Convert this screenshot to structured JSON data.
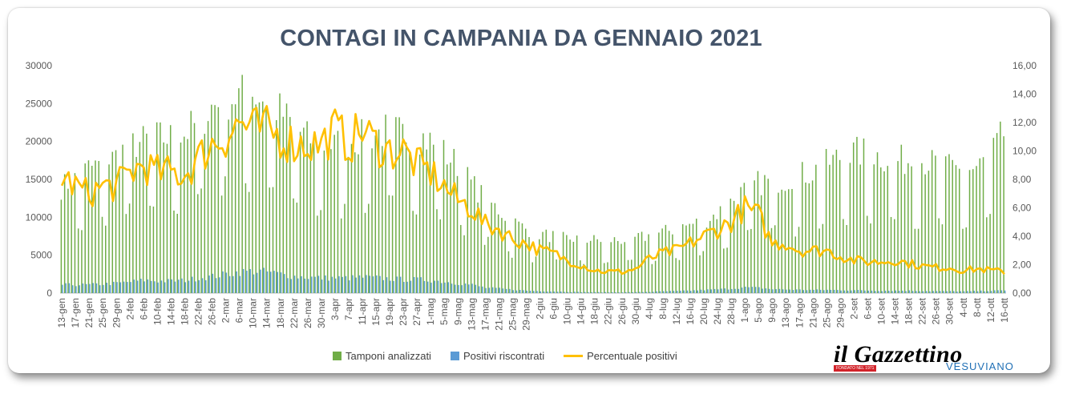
{
  "chart_data": {
    "type": "bar",
    "title": "CONTAGI IN CAMPANIA DA GENNAIO 2021",
    "x_tick_labels": [
      "13-gen",
      "17-gen",
      "21-gen",
      "25-gen",
      "29-gen",
      "2-feb",
      "6-feb",
      "10-feb",
      "14-feb",
      "18-feb",
      "22-feb",
      "26-feb",
      "2-mar",
      "6-mar",
      "10-mar",
      "14-mar",
      "18-mar",
      "22-mar",
      "26-mar",
      "30-mar",
      "3-apr",
      "7-apr",
      "11-apr",
      "15-apr",
      "19-apr",
      "23-apr",
      "27-apr",
      "1-mag",
      "5-mag",
      "9-mag",
      "13-mag",
      "17-mag",
      "21-mag",
      "25-mag",
      "29-mag",
      "2-giu",
      "6-giu",
      "10-giu",
      "14-giu",
      "18-giu",
      "22-giu",
      "26-giu",
      "30-giu",
      "4-lug",
      "8-lug",
      "12-lug",
      "16-lug",
      "20-lug",
      "24-lug",
      "28-lug",
      "1-ago",
      "5-ago",
      "9-ago",
      "13-ago",
      "17-ago",
      "21-ago",
      "25-ago",
      "29-ago",
      "2-set",
      "6-set",
      "10-set",
      "14-set",
      "18-set",
      "22-set",
      "26-set",
      "30-set",
      "4-ott",
      "8-ott",
      "12-ott",
      "16-ott"
    ],
    "y_left": {
      "range": [
        0,
        30000
      ],
      "ticks": [
        "0",
        "5000",
        "10000",
        "15000",
        "20000",
        "25000",
        "30000"
      ]
    },
    "y_right": {
      "range": [
        0,
        16
      ],
      "ticks": [
        "0,00",
        "2,00",
        "4,00",
        "6,00",
        "8,00",
        "10,00",
        "12,00",
        "14,00",
        "16,00"
      ]
    },
    "grid": false,
    "legend_position": "bottom",
    "series": [
      {
        "name": "Tamponi analizzati",
        "kind": "bar",
        "color": "#70ad47",
        "anchors": [
          14000,
          15000,
          16500,
          17000,
          18000,
          19500,
          20000,
          20500,
          20500,
          21000,
          22500,
          24500,
          25500,
          26000,
          26500,
          25500,
          24000,
          22000,
          20500,
          19500,
          19500,
          20000,
          20500,
          21000,
          21500,
          21000,
          21000,
          20000,
          18500,
          17000,
          14500,
          12500,
          11000,
          9500,
          8500,
          7800,
          7500,
          7200,
          7200,
          7000,
          7000,
          7000,
          7200,
          7500,
          8000,
          8500,
          9000,
          9500,
          10500,
          12000,
          13500,
          14500,
          14800,
          15000,
          15500,
          16000,
          17000,
          18000,
          18500,
          18500,
          18000,
          17500,
          17500,
          17500,
          17000,
          16500,
          16000,
          16500,
          18000,
          21000
        ]
      },
      {
        "name": "Positivi riscontrati",
        "kind": "bar",
        "color": "#5b9bd5",
        "anchors": [
          1100,
          1100,
          1100,
          1200,
          1300,
          1500,
          1700,
          1600,
          1600,
          1700,
          2000,
          2200,
          2500,
          2800,
          2900,
          2800,
          2500,
          2200,
          2100,
          2000,
          2000,
          2000,
          2100,
          2000,
          1900,
          1800,
          1800,
          1700,
          1500,
          1300,
          1100,
          700,
          600,
          450,
          330,
          270,
          220,
          170,
          140,
          120,
          110,
          110,
          130,
          170,
          240,
          270,
          330,
          420,
          500,
          600,
          750,
          700,
          520,
          480,
          440,
          420,
          420,
          400,
          370,
          350,
          320,
          330,
          320,
          290,
          260,
          250,
          230,
          270,
          320,
          340
        ]
      },
      {
        "name": "Percentuale positivi",
        "kind": "line",
        "color": "#ffc000",
        "anchors": [
          8.2,
          7.5,
          7.0,
          7.5,
          7.5,
          8.5,
          9.0,
          8.5,
          8.5,
          8.3,
          9.5,
          10.5,
          11.0,
          12.0,
          11.5,
          11.5,
          11.0,
          10.5,
          10.5,
          10.5,
          11.5,
          10.5,
          11.5,
          10.5,
          10.0,
          10.0,
          9.0,
          8.5,
          7.5,
          6.5,
          6.0,
          4.8,
          4.5,
          3.8,
          3.5,
          3.0,
          2.8,
          2.3,
          2.0,
          1.6,
          1.5,
          1.5,
          1.7,
          2.4,
          2.8,
          3.0,
          3.5,
          4.0,
          4.5,
          5.0,
          6.0,
          5.5,
          3.5,
          3.5,
          3.0,
          3.0,
          3.0,
          2.6,
          2.3,
          2.2,
          2.2,
          2.3,
          2.1,
          1.9,
          1.8,
          1.8,
          1.6,
          1.7,
          1.6,
          1.5
        ]
      }
    ]
  },
  "legend": {
    "tamponi": "Tamponi analizzati",
    "positivi": "Positivi riscontrati",
    "percentuale": "Percentuale positivi"
  },
  "logo": {
    "main": "il Gazzettino",
    "sub": "FONDATO NEL 1971",
    "v": "VESUVIANO"
  }
}
